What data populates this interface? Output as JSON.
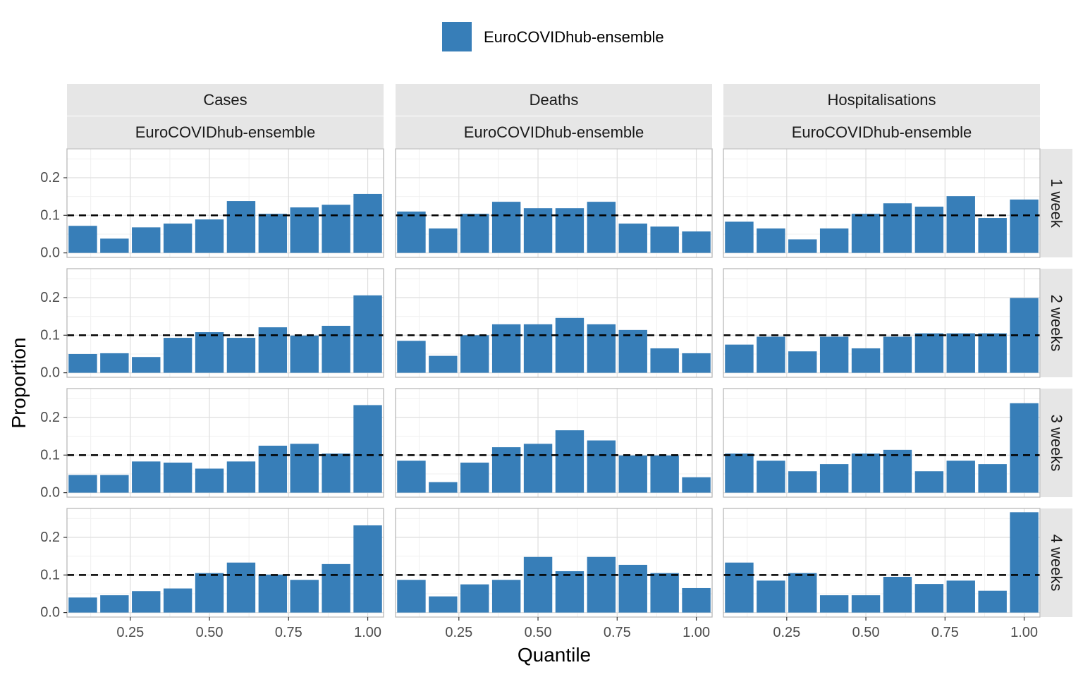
{
  "chart_data": {
    "type": "bar",
    "xlabel": "Quantile",
    "ylabel": "Proportion",
    "xlim": [
      0.05,
      1.05
    ],
    "ylim": [
      -0.012,
      0.277
    ],
    "x_ticks": [
      0.25,
      0.5,
      0.75,
      1.0
    ],
    "x_tick_labels": [
      "0.25",
      "0.50",
      "0.75",
      "1.00"
    ],
    "y_ticks": [
      0.0,
      0.1,
      0.2
    ],
    "y_tick_labels": [
      "0.0",
      "0.1",
      "0.2"
    ],
    "reference_line": 0.1,
    "bin_centers": [
      0.1,
      0.2,
      0.3,
      0.4,
      0.5,
      0.6,
      0.7,
      0.8,
      0.9,
      1.0
    ],
    "legend": {
      "label": "EuroCOVIDhub-ensemble",
      "color": "#377eb8",
      "position": "top"
    },
    "bar_color": "#377eb8",
    "columns": [
      {
        "target": "Cases",
        "model": "EuroCOVIDhub-ensemble"
      },
      {
        "target": "Deaths",
        "model": "EuroCOVIDhub-ensemble"
      },
      {
        "target": "Hospitalisations",
        "model": "EuroCOVIDhub-ensemble"
      }
    ],
    "rows": [
      "1 week",
      "2 weeks",
      "3 weeks",
      "4 weeks"
    ],
    "panels": [
      [
        [
          0.072,
          0.038,
          0.068,
          0.078,
          0.089,
          0.138,
          0.104,
          0.121,
          0.128,
          0.157
        ],
        [
          0.11,
          0.065,
          0.104,
          0.136,
          0.119,
          0.119,
          0.136,
          0.078,
          0.07,
          0.057
        ],
        [
          0.083,
          0.065,
          0.036,
          0.065,
          0.104,
          0.132,
          0.123,
          0.151,
          0.093,
          0.142
        ]
      ],
      [
        [
          0.05,
          0.052,
          0.042,
          0.093,
          0.108,
          0.093,
          0.121,
          0.099,
          0.125,
          0.206
        ],
        [
          0.085,
          0.045,
          0.1,
          0.129,
          0.129,
          0.146,
          0.129,
          0.114,
          0.065,
          0.052
        ],
        [
          0.075,
          0.096,
          0.057,
          0.096,
          0.065,
          0.096,
          0.105,
          0.105,
          0.105,
          0.199
        ]
      ],
      [
        [
          0.047,
          0.047,
          0.083,
          0.08,
          0.064,
          0.083,
          0.125,
          0.13,
          0.104,
          0.233
        ],
        [
          0.085,
          0.028,
          0.08,
          0.121,
          0.13,
          0.166,
          0.139,
          0.099,
          0.099,
          0.041
        ],
        [
          0.104,
          0.085,
          0.057,
          0.076,
          0.104,
          0.114,
          0.057,
          0.085,
          0.076,
          0.238
        ]
      ],
      [
        [
          0.04,
          0.046,
          0.057,
          0.064,
          0.105,
          0.133,
          0.101,
          0.087,
          0.129,
          0.232
        ],
        [
          0.087,
          0.043,
          0.075,
          0.087,
          0.148,
          0.11,
          0.148,
          0.127,
          0.105,
          0.065
        ],
        [
          0.133,
          0.085,
          0.105,
          0.046,
          0.046,
          0.095,
          0.076,
          0.085,
          0.058,
          0.267
        ]
      ]
    ]
  }
}
